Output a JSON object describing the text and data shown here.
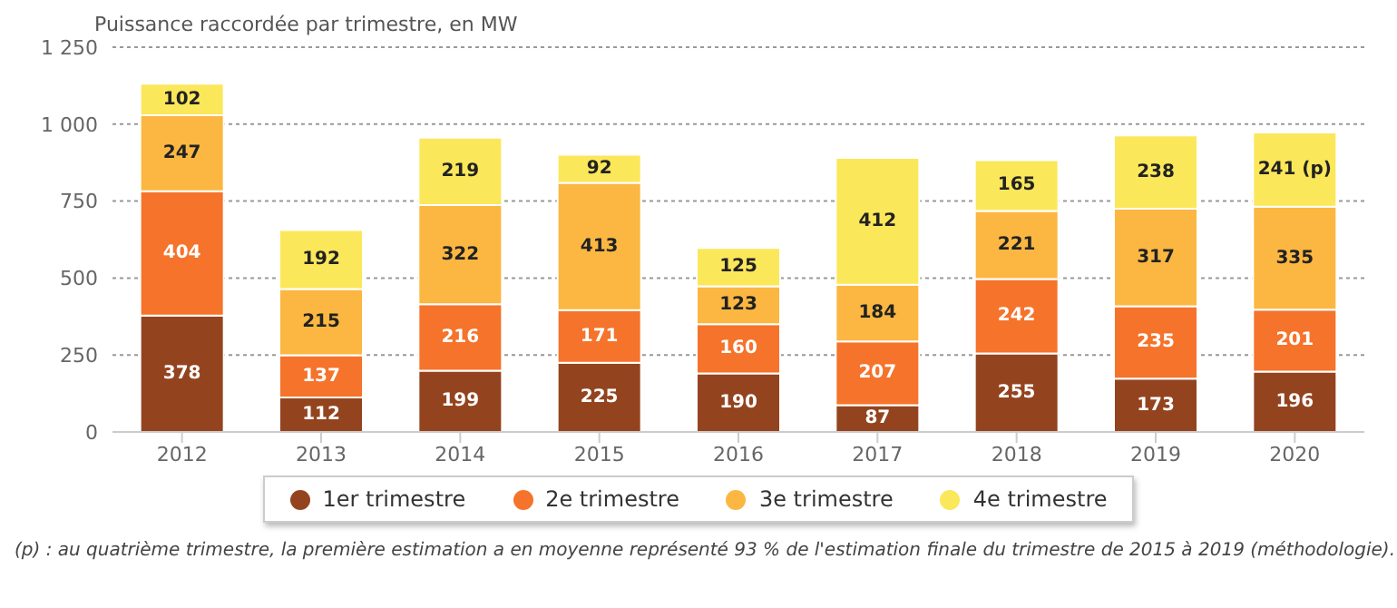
{
  "chart_data": {
    "type": "bar",
    "title": "Puissance raccordée par trimestre, en MW",
    "stacked": true,
    "categories": [
      "2012",
      "2013",
      "2014",
      "2015",
      "2016",
      "2017",
      "2018",
      "2019",
      "2020"
    ],
    "series": [
      {
        "name": "1er trimestre",
        "color": "#93441f",
        "values": [
          378,
          112,
          199,
          225,
          190,
          87,
          255,
          173,
          196
        ],
        "value_labels": [
          "378",
          "112",
          "199",
          "225",
          "190",
          "87",
          "255",
          "173",
          "196"
        ]
      },
      {
        "name": "2e trimestre",
        "color": "#f5732a",
        "values": [
          404,
          137,
          216,
          171,
          160,
          207,
          242,
          235,
          201
        ],
        "value_labels": [
          "404",
          "137",
          "216",
          "171",
          "160",
          "207",
          "242",
          "235",
          "201"
        ]
      },
      {
        "name": "3e trimestre",
        "color": "#fbb741",
        "values": [
          247,
          215,
          322,
          413,
          123,
          184,
          221,
          317,
          335
        ],
        "value_labels": [
          "247",
          "215",
          "322",
          "413",
          "123",
          "184",
          "221",
          "317",
          "335"
        ]
      },
      {
        "name": "4e trimestre",
        "color": "#fbe75a",
        "values": [
          102,
          192,
          219,
          92,
          125,
          412,
          165,
          238,
          241
        ],
        "value_labels": [
          "102",
          "192",
          "219",
          "92",
          "125",
          "412",
          "165",
          "238",
          "241 (p)"
        ]
      }
    ],
    "ylim": [
      0,
      1250
    ],
    "yticks": [
      0,
      {
        "value": 250,
        "label": "250"
      },
      {
        "value": 500,
        "label": "500"
      },
      {
        "value": 750,
        "label": "750"
      },
      {
        "value": 1000,
        "label": "1 000"
      },
      {
        "value": 1250,
        "label": "1 250"
      }
    ],
    "grid": "y",
    "legend": "bottom",
    "annotations": [
      "(p) : au quatrième trimestre, la première estimation a en moyenne représenté 93 % de l'estimation finale du trimestre de 2015 à 2019 (méthodologie)."
    ]
  }
}
